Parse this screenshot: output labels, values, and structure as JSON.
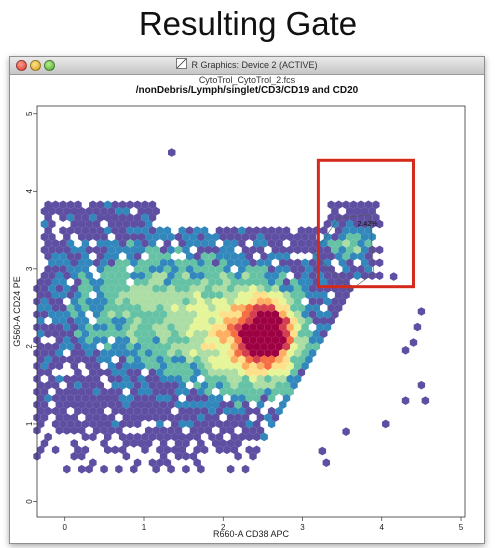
{
  "slide": {
    "title": "Resulting Gate"
  },
  "window": {
    "title": "R Graphics: Device 2 (ACTIVE)",
    "icon": "r-graphics-icon"
  },
  "plot": {
    "file_title": "CytoTrol_CytoTrol_2.fcs",
    "gate_path": "/nonDebris/Lymph/singlet/CD3/CD19 and CD20",
    "gate_percentage": "2.42%"
  },
  "chart_data": {
    "type": "hexbin",
    "xlabel": "R660-A CD38 APC",
    "ylabel": "G560-A CD24 PE",
    "xlim": [
      -0.35,
      5.05
    ],
    "ylim": [
      -0.2,
      5.1
    ],
    "xticks": [
      "0",
      "1",
      "2",
      "3",
      "4",
      "5"
    ],
    "yticks": [
      "0",
      "1",
      "2",
      "3",
      "4",
      "5"
    ],
    "colors": [
      "#5e4fa2",
      "#3288bd",
      "#66c2a5",
      "#abdda4",
      "#e6f598",
      "#fee08b",
      "#fdae61",
      "#f46d43",
      "#d53e4f",
      "#9e0142"
    ],
    "gate_box": {
      "x": [
        3.2,
        4.4
      ],
      "y": [
        2.77,
        4.4
      ],
      "color": "#d42a1b"
    },
    "gate_label_position": [
      3.82,
      3.55
    ]
  }
}
